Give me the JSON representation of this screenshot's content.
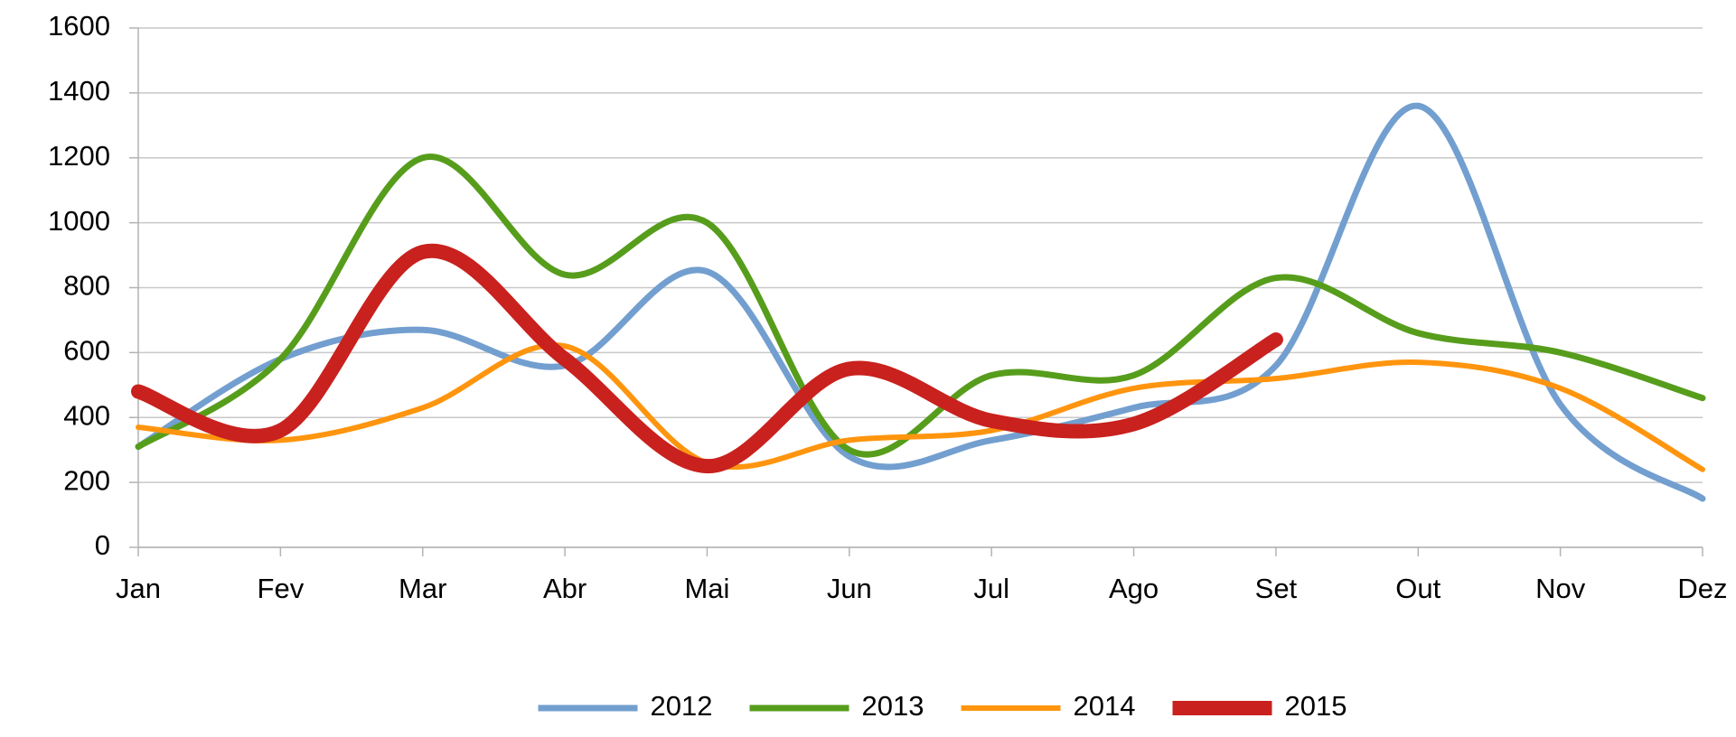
{
  "chart_data": {
    "type": "line",
    "categories": [
      "Jan",
      "Fev",
      "Mar",
      "Abr",
      "Mai",
      "Jun",
      "Jul",
      "Ago",
      "Set",
      "Out",
      "Nov",
      "Dez"
    ],
    "series": [
      {
        "name": "2012",
        "color": "#729fcf",
        "values": [
          310,
          580,
          670,
          560,
          850,
          280,
          330,
          430,
          560,
          1360,
          440,
          150
        ]
      },
      {
        "name": "2013",
        "color": "#579d1c",
        "values": [
          310,
          580,
          1200,
          840,
          1000,
          300,
          530,
          530,
          830,
          660,
          600,
          460
        ]
      },
      {
        "name": "2014",
        "color": "#ff950e",
        "values": [
          370,
          330,
          430,
          620,
          260,
          330,
          360,
          490,
          520,
          570,
          490,
          240
        ]
      },
      {
        "name": "2015",
        "color": "#c9211e",
        "values": [
          480,
          360,
          910,
          580,
          250,
          550,
          390,
          380,
          640,
          null,
          null,
          null
        ]
      }
    ],
    "ylim": [
      0,
      1600
    ],
    "yticks": [
      0,
      200,
      400,
      600,
      800,
      1000,
      1200,
      1400,
      1600
    ],
    "grid": true,
    "smooth": true,
    "legend": "bottom"
  }
}
